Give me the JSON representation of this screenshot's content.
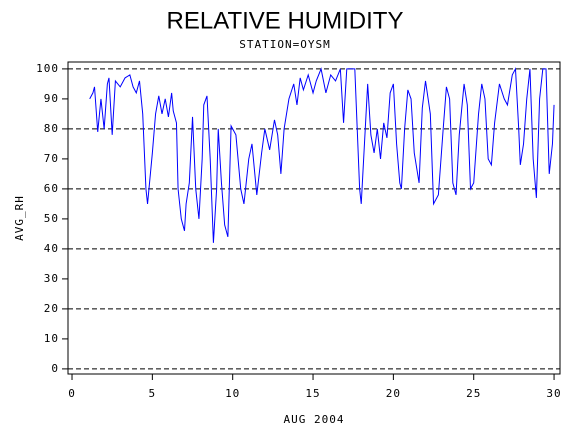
{
  "chart_data": {
    "type": "line",
    "title": "RELATIVE HUMIDITY",
    "subtitle": "STATION=OYSM",
    "x_label": "AUG 2004",
    "y_label": "AVG_RH",
    "xlim": [
      -0.25,
      30.37
    ],
    "ylim": [
      -1.7,
      102.3
    ],
    "xticks": [
      0,
      5,
      10,
      15,
      20,
      25,
      30
    ],
    "yticks": [
      0,
      10,
      20,
      30,
      40,
      50,
      60,
      70,
      80,
      90,
      100
    ],
    "reference_lines": [
      0,
      20,
      40,
      60,
      80,
      100
    ],
    "color": "#0000ff",
    "x": [
      1.1,
      1.3,
      1.4,
      1.6,
      1.8,
      2.0,
      2.2,
      2.3,
      2.5,
      2.7,
      3.0,
      3.3,
      3.6,
      3.8,
      4.0,
      4.2,
      4.4,
      4.6,
      4.7,
      5.0,
      5.2,
      5.4,
      5.6,
      5.8,
      6.0,
      6.2,
      6.3,
      6.5,
      6.6,
      6.8,
      7.0,
      7.1,
      7.3,
      7.5,
      7.7,
      7.9,
      8.1,
      8.2,
      8.4,
      8.6,
      8.8,
      9.0,
      9.1,
      9.3,
      9.5,
      9.7,
      9.9,
      10.2,
      10.5,
      10.7,
      11.0,
      11.2,
      11.5,
      11.8,
      12.0,
      12.3,
      12.6,
      12.8,
      13.0,
      13.2,
      13.5,
      13.8,
      14.0,
      14.2,
      14.4,
      14.7,
      15.0,
      15.2,
      15.5,
      15.8,
      16.1,
      16.4,
      16.7,
      16.9,
      17.1,
      17.4,
      17.6,
      17.9,
      18.0,
      18.2,
      18.4,
      18.6,
      18.8,
      19.0,
      19.2,
      19.4,
      19.6,
      19.8,
      20.0,
      20.2,
      20.4,
      20.5,
      20.7,
      20.9,
      21.1,
      21.3,
      21.6,
      21.8,
      22.0,
      22.3,
      22.5,
      22.8,
      23.1,
      23.3,
      23.5,
      23.7,
      23.9,
      24.1,
      24.4,
      24.6,
      24.8,
      25.0,
      25.3,
      25.5,
      25.7,
      25.9,
      26.1,
      26.3,
      26.6,
      26.9,
      27.1,
      27.4,
      27.6,
      27.8,
      27.9,
      28.1,
      28.3,
      28.5,
      28.7,
      28.9,
      29.1,
      29.3,
      29.5,
      29.7,
      29.9,
      30.0
    ],
    "values": [
      90,
      92,
      94,
      79,
      90,
      80,
      95,
      97,
      78,
      96,
      94,
      97,
      98,
      94,
      92,
      96,
      85,
      60,
      55,
      72,
      85,
      91,
      85,
      90,
      84,
      92,
      86,
      82,
      60,
      50,
      46,
      55,
      62,
      84,
      60,
      50,
      70,
      88,
      91,
      70,
      42,
      60,
      80,
      62,
      48,
      44,
      81,
      78,
      60,
      55,
      70,
      75,
      58,
      72,
      80,
      73,
      83,
      78,
      65,
      80,
      90,
      95,
      88,
      97,
      93,
      98,
      92,
      96,
      100,
      92,
      98,
      96,
      100,
      82,
      100,
      100,
      100,
      60,
      55,
      75,
      95,
      78,
      72,
      80,
      70,
      82,
      77,
      92,
      95,
      75,
      62,
      60,
      80,
      93,
      90,
      72,
      62,
      87,
      96,
      85,
      55,
      58,
      80,
      94,
      90,
      62,
      58,
      78,
      95,
      88,
      60,
      62,
      85,
      95,
      90,
      70,
      68,
      82,
      95,
      90,
      88,
      98,
      100,
      80,
      68,
      75,
      90,
      100,
      70,
      57,
      90,
      100,
      100,
      65,
      75,
      88
    ]
  }
}
